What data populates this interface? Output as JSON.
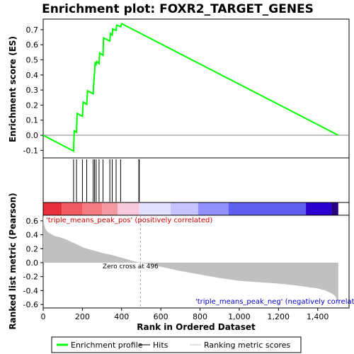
{
  "chart_data": {
    "type": "line",
    "title": "Enrichment plot: FOXR2_TARGET_GENES",
    "top_panel": {
      "ylabel": "Enrichment score (ES)",
      "ylim": [
        -0.15,
        0.77
      ],
      "yticks": [
        -0.1,
        0.0,
        0.1,
        0.2,
        0.3,
        0.4,
        0.5,
        0.6,
        0.7
      ],
      "ytick_labels": [
        "-0.1",
        "0.0",
        "0.1",
        "0.2",
        "0.3",
        "0.4",
        "0.5",
        "0.6",
        "0.7"
      ],
      "series": [
        {
          "name": "Enrichment profile",
          "color": "#00ff00",
          "x": [
            0,
            155,
            158,
            170,
            173,
            200,
            204,
            222,
            226,
            255,
            258,
            262,
            265,
            270,
            273,
            285,
            288,
            305,
            308,
            340,
            343,
            352,
            355,
            372,
            375,
            395,
            400,
            1505
          ],
          "y": [
            0.0,
            -0.105,
            0.03,
            0.02,
            0.145,
            0.125,
            0.22,
            0.205,
            0.295,
            0.275,
            0.345,
            0.42,
            0.485,
            0.47,
            0.49,
            0.475,
            0.545,
            0.53,
            0.645,
            0.625,
            0.675,
            0.665,
            0.705,
            0.695,
            0.73,
            0.72,
            0.74,
            0.0
          ]
        }
      ]
    },
    "hits": {
      "name": "Hits",
      "x": [
        155,
        170,
        200,
        222,
        255,
        262,
        270,
        285,
        305,
        340,
        352,
        372,
        395,
        488,
        490
      ]
    },
    "bottom_panel": {
      "name": "Ranking metric scores",
      "xlabel": "Rank in Ordered Dataset",
      "ylabel": "Ranked list metric (Pearson)",
      "xlim": [
        0,
        1560
      ],
      "ylim": [
        -0.65,
        0.68
      ],
      "xticks": [
        0,
        200,
        400,
        600,
        800,
        1000,
        1200,
        1400
      ],
      "xtick_labels": [
        "0",
        "200",
        "400",
        "600",
        "800",
        "1,000",
        "1,200",
        "1,400"
      ],
      "yticks": [
        -0.6,
        -0.4,
        -0.2,
        0.0,
        0.2,
        0.4,
        0.6
      ],
      "ytick_labels": [
        "-0.6",
        "-0.4",
        "-0.2",
        "0.0",
        "0.2",
        "0.4",
        "0.6"
      ],
      "metric_x": [
        0,
        5,
        10,
        20,
        40,
        60,
        90,
        120,
        150,
        180,
        210,
        250,
        300,
        350,
        400,
        450,
        496,
        550,
        600,
        650,
        700,
        800,
        900,
        1000,
        1100,
        1200,
        1300,
        1350,
        1400,
        1440,
        1470,
        1490,
        1500,
        1505
      ],
      "metric_y": [
        0.68,
        0.55,
        0.5,
        0.45,
        0.41,
        0.38,
        0.36,
        0.33,
        0.29,
        0.25,
        0.21,
        0.18,
        0.14,
        0.11,
        0.07,
        0.03,
        0.0,
        -0.03,
        -0.06,
        -0.09,
        -0.12,
        -0.17,
        -0.22,
        -0.26,
        -0.28,
        -0.3,
        -0.33,
        -0.35,
        -0.37,
        -0.4,
        -0.44,
        -0.48,
        -0.55,
        -0.63
      ],
      "zero_cross_label": "Zero cross at 496",
      "zero_cross_x": 496,
      "pos_label": "'triple_means_peak_pos' (positively correlated)",
      "neg_label": "'triple_means_peak_neg' (negatively correlat"
    },
    "heatmap_segments": [
      {
        "x0": 0,
        "x1": 95,
        "color": "#e8303a"
      },
      {
        "x0": 95,
        "x1": 200,
        "color": "#f05a60"
      },
      {
        "x0": 200,
        "x1": 300,
        "color": "#f27a80"
      },
      {
        "x0": 300,
        "x1": 380,
        "color": "#f49aa0"
      },
      {
        "x0": 380,
        "x1": 490,
        "color": "#f8c8dc"
      },
      {
        "x0": 490,
        "x1": 650,
        "color": "#e0e0ff"
      },
      {
        "x0": 650,
        "x1": 790,
        "color": "#c4c4ff"
      },
      {
        "x0": 790,
        "x1": 945,
        "color": "#9090ff"
      },
      {
        "x0": 945,
        "x1": 1340,
        "color": "#6060f0"
      },
      {
        "x0": 1340,
        "x1": 1470,
        "color": "#2a00d0"
      },
      {
        "x0": 1470,
        "x1": 1505,
        "color": "#2a0080"
      }
    ],
    "legend": {
      "placement": "bottom",
      "entries": [
        {
          "label": "Enrichment profile",
          "color": "#00ff00"
        },
        {
          "label": "Hits",
          "color": "#000000"
        },
        {
          "label": "Ranking metric scores",
          "color": "#c0c0c0"
        }
      ]
    }
  }
}
